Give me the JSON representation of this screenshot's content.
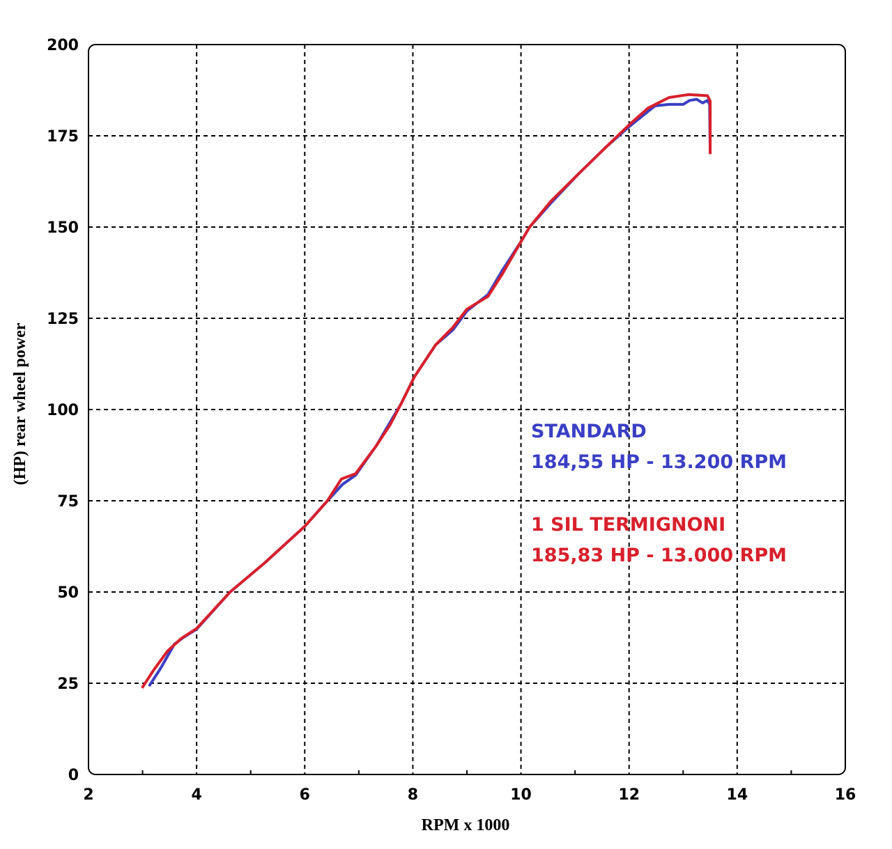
{
  "chart_data": {
    "type": "line",
    "title": "",
    "xlabel": "RPM x 1000",
    "ylabel": "(HP) rear wheel power",
    "xlim": [
      2,
      16
    ],
    "ylim": [
      0,
      200
    ],
    "xticks": [
      2,
      4,
      6,
      8,
      10,
      12,
      14,
      16
    ],
    "yticks": [
      0,
      25,
      50,
      75,
      100,
      125,
      150,
      175,
      200
    ],
    "grid": true,
    "legend_placement": "center-right",
    "series": [
      {
        "name": "STANDARD",
        "annotation": "184,55 HP - 13.200 RPM",
        "color": "#3a3fc4",
        "x": [
          3.12,
          3.33,
          3.59,
          3.75,
          4.0,
          4.62,
          5.26,
          6.0,
          6.42,
          6.7,
          6.94,
          7.32,
          7.58,
          7.78,
          8.03,
          8.42,
          8.74,
          9.0,
          9.39,
          9.65,
          10.0,
          10.16,
          10.55,
          11.06,
          11.58,
          12.0,
          12.48,
          12.74,
          13.0,
          13.12,
          13.25,
          13.36,
          13.45,
          13.49,
          13.5
        ],
        "y": [
          24.2,
          29,
          35.7,
          37.5,
          39.8,
          50,
          58,
          68,
          75,
          79.5,
          82,
          90,
          96.5,
          101.5,
          109,
          117.7,
          121.8,
          127,
          131.5,
          138,
          146,
          150,
          156.5,
          164.5,
          172,
          177.5,
          183.2,
          183.6,
          183.6,
          184.7,
          185,
          184,
          184.7,
          183.6,
          170
        ]
      },
      {
        "name": "1 SIL TERMIGNONI",
        "annotation": "185,83 HP - 13.000 RPM",
        "color": "#d8202c",
        "x": [
          2.99,
          3.2,
          3.46,
          3.71,
          4.0,
          4.62,
          5.26,
          6.0,
          6.42,
          6.68,
          6.94,
          7.32,
          7.58,
          7.78,
          8.03,
          8.42,
          8.74,
          9.0,
          9.39,
          9.65,
          10.0,
          10.16,
          10.55,
          11.06,
          11.58,
          12.0,
          12.35,
          12.74,
          13.1,
          13.45,
          13.5,
          13.5
        ],
        "y": [
          23.7,
          28.5,
          33.8,
          37.2,
          40,
          50,
          58,
          68,
          75,
          81,
          82.4,
          90,
          95.8,
          101.5,
          109,
          117.7,
          122.5,
          127.5,
          131,
          137,
          146,
          150,
          157,
          164.5,
          172,
          178,
          182.6,
          185.5,
          186.3,
          186,
          184.5,
          170
        ]
      }
    ]
  }
}
